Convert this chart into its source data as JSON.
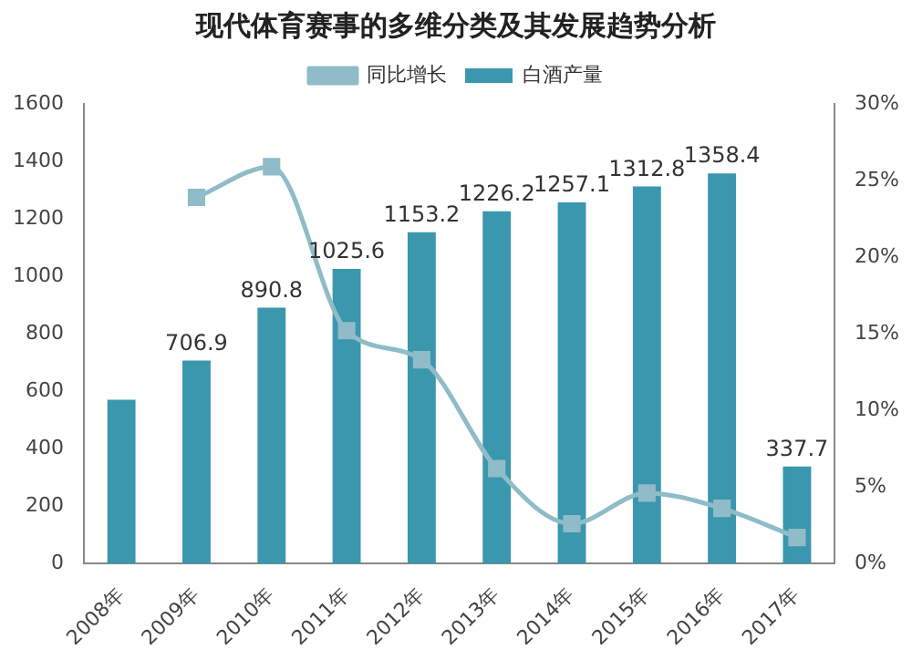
{
  "chart_data": {
    "type": "bar",
    "title": "现代体育赛事的多维分类及其发展趋势分析",
    "categories": [
      "2008年",
      "2009年",
      "2010年",
      "2011年",
      "2012年",
      "2013年",
      "2014年",
      "2015年",
      "2016年",
      "2017年"
    ],
    "series": [
      {
        "name": "白酒产量",
        "color": "#3a97ad",
        "values": [
          570,
          706.9,
          890.8,
          1025.6,
          1153.2,
          1226.2,
          1257.1,
          1312.8,
          1358.4,
          337.7
        ],
        "value_labels": [
          null,
          "706.9",
          "890.8",
          "1025.6",
          "1153.2",
          "1226.2",
          "1257.1",
          "1312.8",
          "1358.4",
          "337.7"
        ]
      },
      {
        "name": "同比增长",
        "type": "line",
        "axis": "y2",
        "color": "#8fbcc8",
        "marker": "square",
        "values": [
          null,
          23.9,
          25.9,
          15.2,
          13.3,
          6.2,
          2.6,
          4.6,
          3.6,
          1.7
        ]
      }
    ],
    "ylim": [
      0,
      1600
    ],
    "yticks": [
      0,
      200,
      400,
      600,
      800,
      1000,
      1200,
      1400,
      1600
    ],
    "y2lim": [
      0,
      30
    ],
    "y2ticks": [
      {
        "value": 0,
        "label": "0%"
      },
      {
        "value": 5,
        "label": "5%"
      },
      {
        "value": 10,
        "label": "10%"
      },
      {
        "value": 15,
        "label": "15%"
      },
      {
        "value": 20,
        "label": "20%"
      },
      {
        "value": 25,
        "label": "25%"
      },
      {
        "value": 30,
        "label": "30%"
      }
    ],
    "grid": false,
    "legend": "top"
  }
}
